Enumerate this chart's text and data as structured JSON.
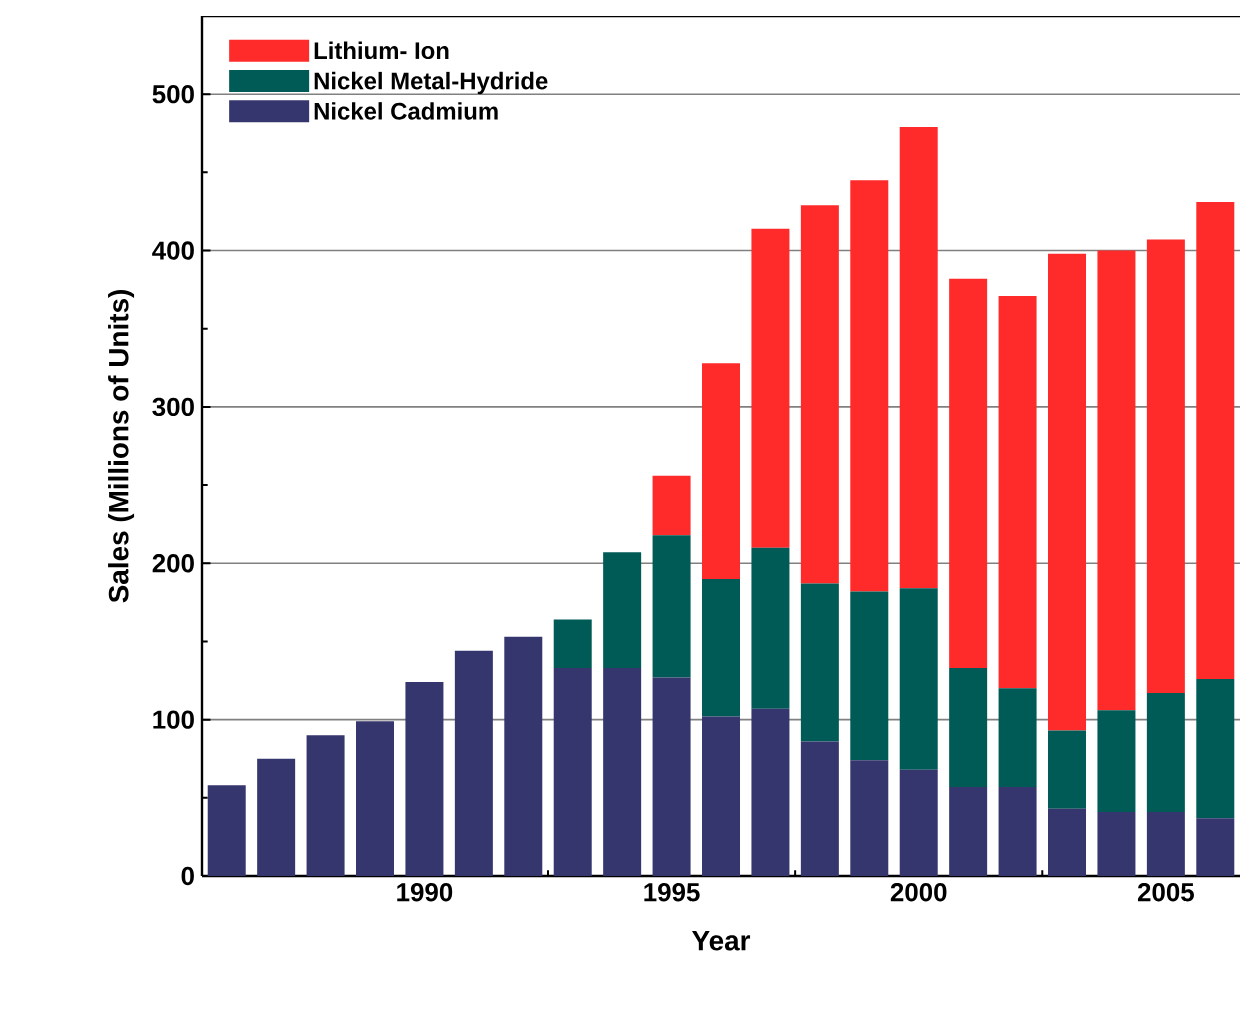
{
  "chart_data": {
    "type": "bar",
    "stacked": true,
    "xlabel": "Year",
    "ylabel": "Sales (Millions of Units)",
    "x": [
      1986,
      1987,
      1988,
      1989,
      1990,
      1991,
      1992,
      1993,
      1994,
      1995,
      1996,
      1997,
      1998,
      1999,
      2000,
      2001,
      2002,
      2003,
      2004,
      2005,
      2006
    ],
    "series": [
      {
        "name": "Nickel Cadmium",
        "color": "#36366e",
        "values": [
          58,
          75,
          90,
          99,
          124,
          144,
          153,
          133,
          133,
          127,
          102,
          107,
          86,
          74,
          68,
          57,
          57,
          43,
          41,
          41,
          37
        ]
      },
      {
        "name": "Nickel Metal-Hydride",
        "color": "#005a55",
        "values": [
          null,
          null,
          null,
          null,
          null,
          null,
          null,
          31,
          74,
          91,
          88,
          103,
          101,
          108,
          116,
          76,
          63,
          50,
          65,
          76,
          89
        ]
      },
      {
        "name": "Lithium- Ion",
        "color": "#ff2a2a",
        "values": [
          null,
          null,
          null,
          null,
          null,
          null,
          null,
          null,
          null,
          38,
          138,
          204,
          242,
          263,
          295,
          249,
          251,
          305,
          294,
          290,
          305
        ]
      }
    ],
    "xlim": [
      1985.5,
      2006.5
    ],
    "xticks": [
      1990,
      1995,
      2000,
      2005
    ],
    "ylim": [
      0,
      550
    ],
    "yticks": [
      0,
      100,
      200,
      300,
      400,
      500
    ],
    "grid": "y",
    "legend": "top left"
  }
}
